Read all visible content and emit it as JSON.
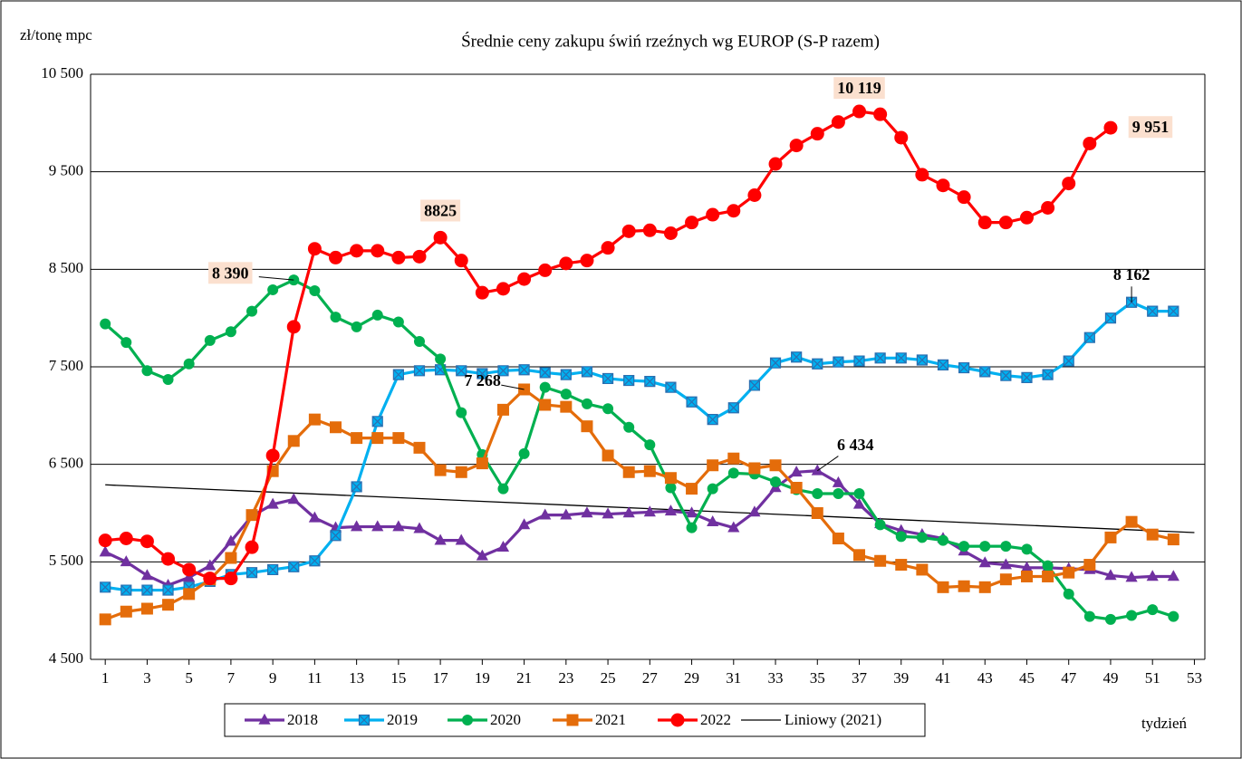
{
  "chart_data": {
    "type": "line",
    "title": "Średnie ceny zakupu świń rzeźnych wg EUROP (S-P razem)",
    "y_label": "zł/tonę mpc",
    "x_label": "tydzień",
    "x": [
      1,
      2,
      3,
      4,
      5,
      6,
      7,
      8,
      9,
      10,
      11,
      12,
      13,
      14,
      15,
      16,
      17,
      18,
      19,
      20,
      21,
      22,
      23,
      24,
      25,
      26,
      27,
      28,
      29,
      30,
      31,
      32,
      33,
      34,
      35,
      36,
      37,
      38,
      39,
      40,
      41,
      42,
      43,
      44,
      45,
      46,
      47,
      48,
      49,
      50,
      51,
      52
    ],
    "xlim": [
      0.3,
      53.5
    ],
    "xticks": [
      1,
      3,
      5,
      7,
      9,
      11,
      13,
      15,
      17,
      19,
      21,
      23,
      25,
      27,
      29,
      31,
      33,
      35,
      37,
      39,
      41,
      43,
      45,
      47,
      49,
      51,
      53
    ],
    "ylim": [
      4500,
      10500
    ],
    "yticks": [
      {
        "value": 4500,
        "label": "4 500"
      },
      {
        "value": 5500,
        "label": "5 500"
      },
      {
        "value": 6500,
        "label": "6 500"
      },
      {
        "value": 7500,
        "label": "7 500"
      },
      {
        "value": 8500,
        "label": "8 500"
      },
      {
        "value": 9500,
        "label": "9 500"
      },
      {
        "value": 10500,
        "label": "10 500"
      }
    ],
    "grid": true,
    "series": [
      {
        "name": "2018",
        "color": "#7030a0",
        "values": [
          5600,
          5500,
          5360,
          5260,
          5340,
          5460,
          5710,
          5970,
          6090,
          6140,
          5950,
          5850,
          5860,
          5860,
          5860,
          5840,
          5720,
          5720,
          5560,
          5650,
          5880,
          5980,
          5980,
          6000,
          5990,
          6000,
          6010,
          6020,
          6000,
          5910,
          5850,
          6010,
          6260,
          6420,
          6434,
          6310,
          6090,
          5890,
          5820,
          5780,
          5740,
          5610,
          5490,
          5470,
          5440,
          5440,
          5430,
          5420,
          5360,
          5340,
          5350,
          5350
        ],
        "value_labels": [
          null,
          null,
          null,
          null,
          null,
          null,
          null,
          null,
          null,
          null,
          null,
          null,
          null,
          null,
          null,
          null,
          null,
          null,
          null,
          null,
          null,
          null,
          null,
          null,
          null,
          null,
          null,
          null,
          null,
          null,
          null,
          null,
          null,
          null,
          "6 434",
          null,
          null,
          null,
          null,
          null,
          null,
          null,
          null,
          null,
          null,
          null,
          null,
          null,
          null,
          null,
          null,
          null
        ]
      },
      {
        "name": "2019",
        "color": "#00b0f0",
        "values": [
          5240,
          5210,
          5210,
          5210,
          5240,
          5300,
          5370,
          5390,
          5420,
          5450,
          5510,
          5770,
          6270,
          6940,
          7420,
          7460,
          7470,
          7460,
          7430,
          7460,
          7470,
          7440,
          7420,
          7450,
          7380,
          7360,
          7350,
          7290,
          7140,
          6960,
          7080,
          7310,
          7540,
          7600,
          7530,
          7550,
          7560,
          7590,
          7590,
          7570,
          7520,
          7490,
          7450,
          7410,
          7390,
          7420,
          7560,
          7800,
          8000,
          8162,
          8070,
          8070
        ],
        "value_labels": [
          null,
          null,
          null,
          null,
          null,
          null,
          null,
          null,
          null,
          null,
          null,
          null,
          null,
          null,
          null,
          null,
          null,
          null,
          null,
          null,
          null,
          null,
          null,
          null,
          null,
          null,
          null,
          null,
          null,
          null,
          null,
          null,
          null,
          null,
          null,
          null,
          null,
          null,
          null,
          null,
          null,
          null,
          null,
          null,
          null,
          null,
          null,
          null,
          null,
          "8 162",
          null,
          null
        ]
      },
      {
        "name": "2020",
        "color": "#00b050",
        "values": [
          7940,
          7750,
          7460,
          7370,
          7530,
          7770,
          7860,
          8070,
          8290,
          8390,
          8280,
          8010,
          7910,
          8030,
          7960,
          7760,
          7580,
          7030,
          6600,
          6250,
          6610,
          7290,
          7220,
          7120,
          7070,
          6880,
          6700,
          6260,
          5850,
          6250,
          6410,
          6400,
          6320,
          6240,
          6200,
          6200,
          6200,
          5880,
          5760,
          5750,
          5720,
          5660,
          5660,
          5660,
          5630,
          5460,
          5170,
          4940,
          4910,
          4950,
          5010,
          4940
        ],
        "value_labels": [
          null,
          null,
          null,
          null,
          null,
          null,
          null,
          null,
          null,
          "8 390",
          null,
          null,
          null,
          null,
          null,
          null,
          null,
          null,
          null,
          null,
          null,
          null,
          null,
          null,
          null,
          null,
          null,
          null,
          null,
          null,
          null,
          null,
          null,
          null,
          null,
          null,
          null,
          null,
          null,
          null,
          null,
          null,
          null,
          null,
          null,
          null,
          null,
          null,
          null,
          null,
          null,
          null
        ]
      },
      {
        "name": "2021",
        "color": "#e46c0a",
        "values": [
          4910,
          4990,
          5020,
          5060,
          5170,
          5320,
          5540,
          5980,
          6430,
          6740,
          6960,
          6880,
          6770,
          6770,
          6770,
          6670,
          6440,
          6420,
          6510,
          7060,
          7268,
          7110,
          7090,
          6890,
          6590,
          6420,
          6430,
          6360,
          6250,
          6490,
          6560,
          6460,
          6490,
          6260,
          6000,
          5740,
          5570,
          5510,
          5470,
          5420,
          5240,
          5250,
          5240,
          5320,
          5350,
          5350,
          5390,
          5470,
          5750,
          5910,
          5780,
          5730
        ],
        "value_labels": [
          null,
          null,
          null,
          null,
          null,
          null,
          null,
          null,
          null,
          null,
          null,
          null,
          null,
          null,
          null,
          null,
          null,
          null,
          null,
          null,
          "7 268",
          null,
          null,
          null,
          null,
          null,
          null,
          null,
          null,
          null,
          null,
          null,
          null,
          null,
          null,
          null,
          null,
          null,
          null,
          null,
          null,
          null,
          null,
          null,
          null,
          null,
          null,
          null,
          null,
          null,
          null,
          null
        ]
      },
      {
        "name": "2022",
        "color": "#ff0000",
        "values": [
          5720,
          5740,
          5710,
          5530,
          5420,
          5330,
          5330,
          5650,
          6590,
          7910,
          8710,
          8620,
          8690,
          8690,
          8620,
          8630,
          8825,
          8590,
          8260,
          8300,
          8400,
          8490,
          8560,
          8590,
          8720,
          8890,
          8900,
          8870,
          8980,
          9060,
          9100,
          9260,
          9580,
          9770,
          9890,
          10010,
          10119,
          10090,
          9850,
          9470,
          9360,
          9240,
          8980,
          8980,
          9030,
          9130,
          9380,
          9790,
          9951,
          null,
          null,
          null
        ],
        "value_labels": [
          null,
          null,
          null,
          null,
          null,
          null,
          null,
          null,
          null,
          null,
          null,
          null,
          null,
          null,
          null,
          null,
          "8825",
          null,
          null,
          null,
          null,
          null,
          null,
          null,
          null,
          null,
          null,
          null,
          null,
          null,
          null,
          null,
          null,
          null,
          null,
          null,
          "10 119",
          null,
          null,
          null,
          null,
          null,
          null,
          null,
          null,
          null,
          null,
          null,
          "9 951",
          null,
          null,
          null
        ]
      }
    ],
    "trend": {
      "name": "Liniowy (2021)",
      "color": "#000000",
      "x": [
        1,
        53
      ],
      "values": [
        6290,
        5800
      ]
    }
  }
}
